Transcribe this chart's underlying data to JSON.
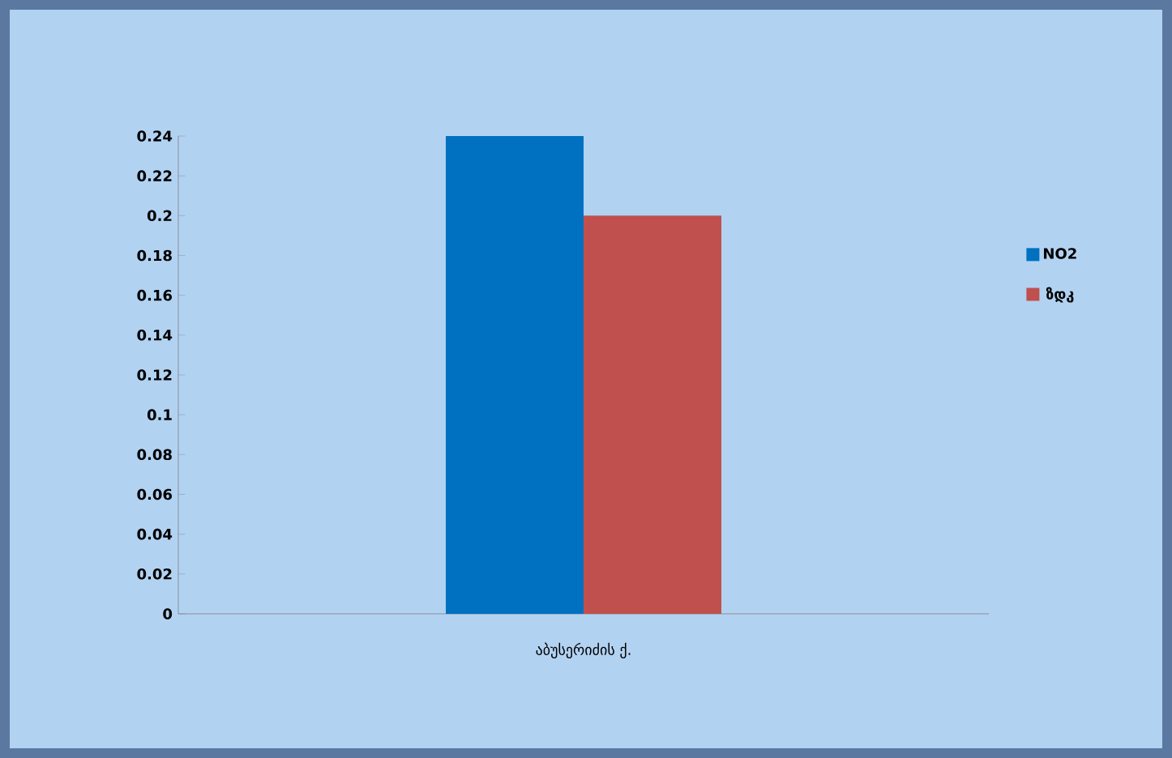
{
  "chart_data": {
    "type": "bar",
    "categories": [
      "აბუსერიძის ქ."
    ],
    "series": [
      {
        "name": "NO2",
        "color": "#0070c0",
        "values": [
          0.24
        ]
      },
      {
        "name": "ზდკ",
        "color": "#c0504d",
        "values": [
          0.2
        ]
      }
    ],
    "ylim": [
      0,
      0.24
    ],
    "yticks": [
      0,
      0.02,
      0.04,
      0.06,
      0.08,
      0.1,
      0.12,
      0.14,
      0.16,
      0.18,
      0.2,
      0.22,
      0.24
    ],
    "legend": "right"
  }
}
